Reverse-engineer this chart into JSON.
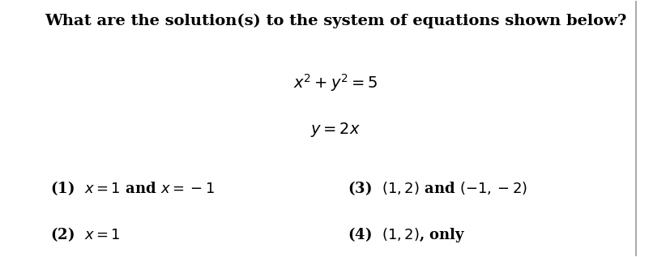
{
  "title": "What are the solution(s) to the system of equations shown below?",
  "eq1": "$x^2 + y^2 = 5$",
  "eq2": "$y = 2x$",
  "opt1": "(1)  $x = 1$ and $x = -1$",
  "opt2": "(2)  $x = 1$",
  "opt3": "(3)  $(1, 2)$ and $(-1, -2)$",
  "opt4": "(4)  $(1, 2)$, only",
  "bg_color": "#ffffff",
  "text_color": "#000000",
  "title_fontsize": 14,
  "eq_fontsize": 14,
  "opt_fontsize": 13
}
